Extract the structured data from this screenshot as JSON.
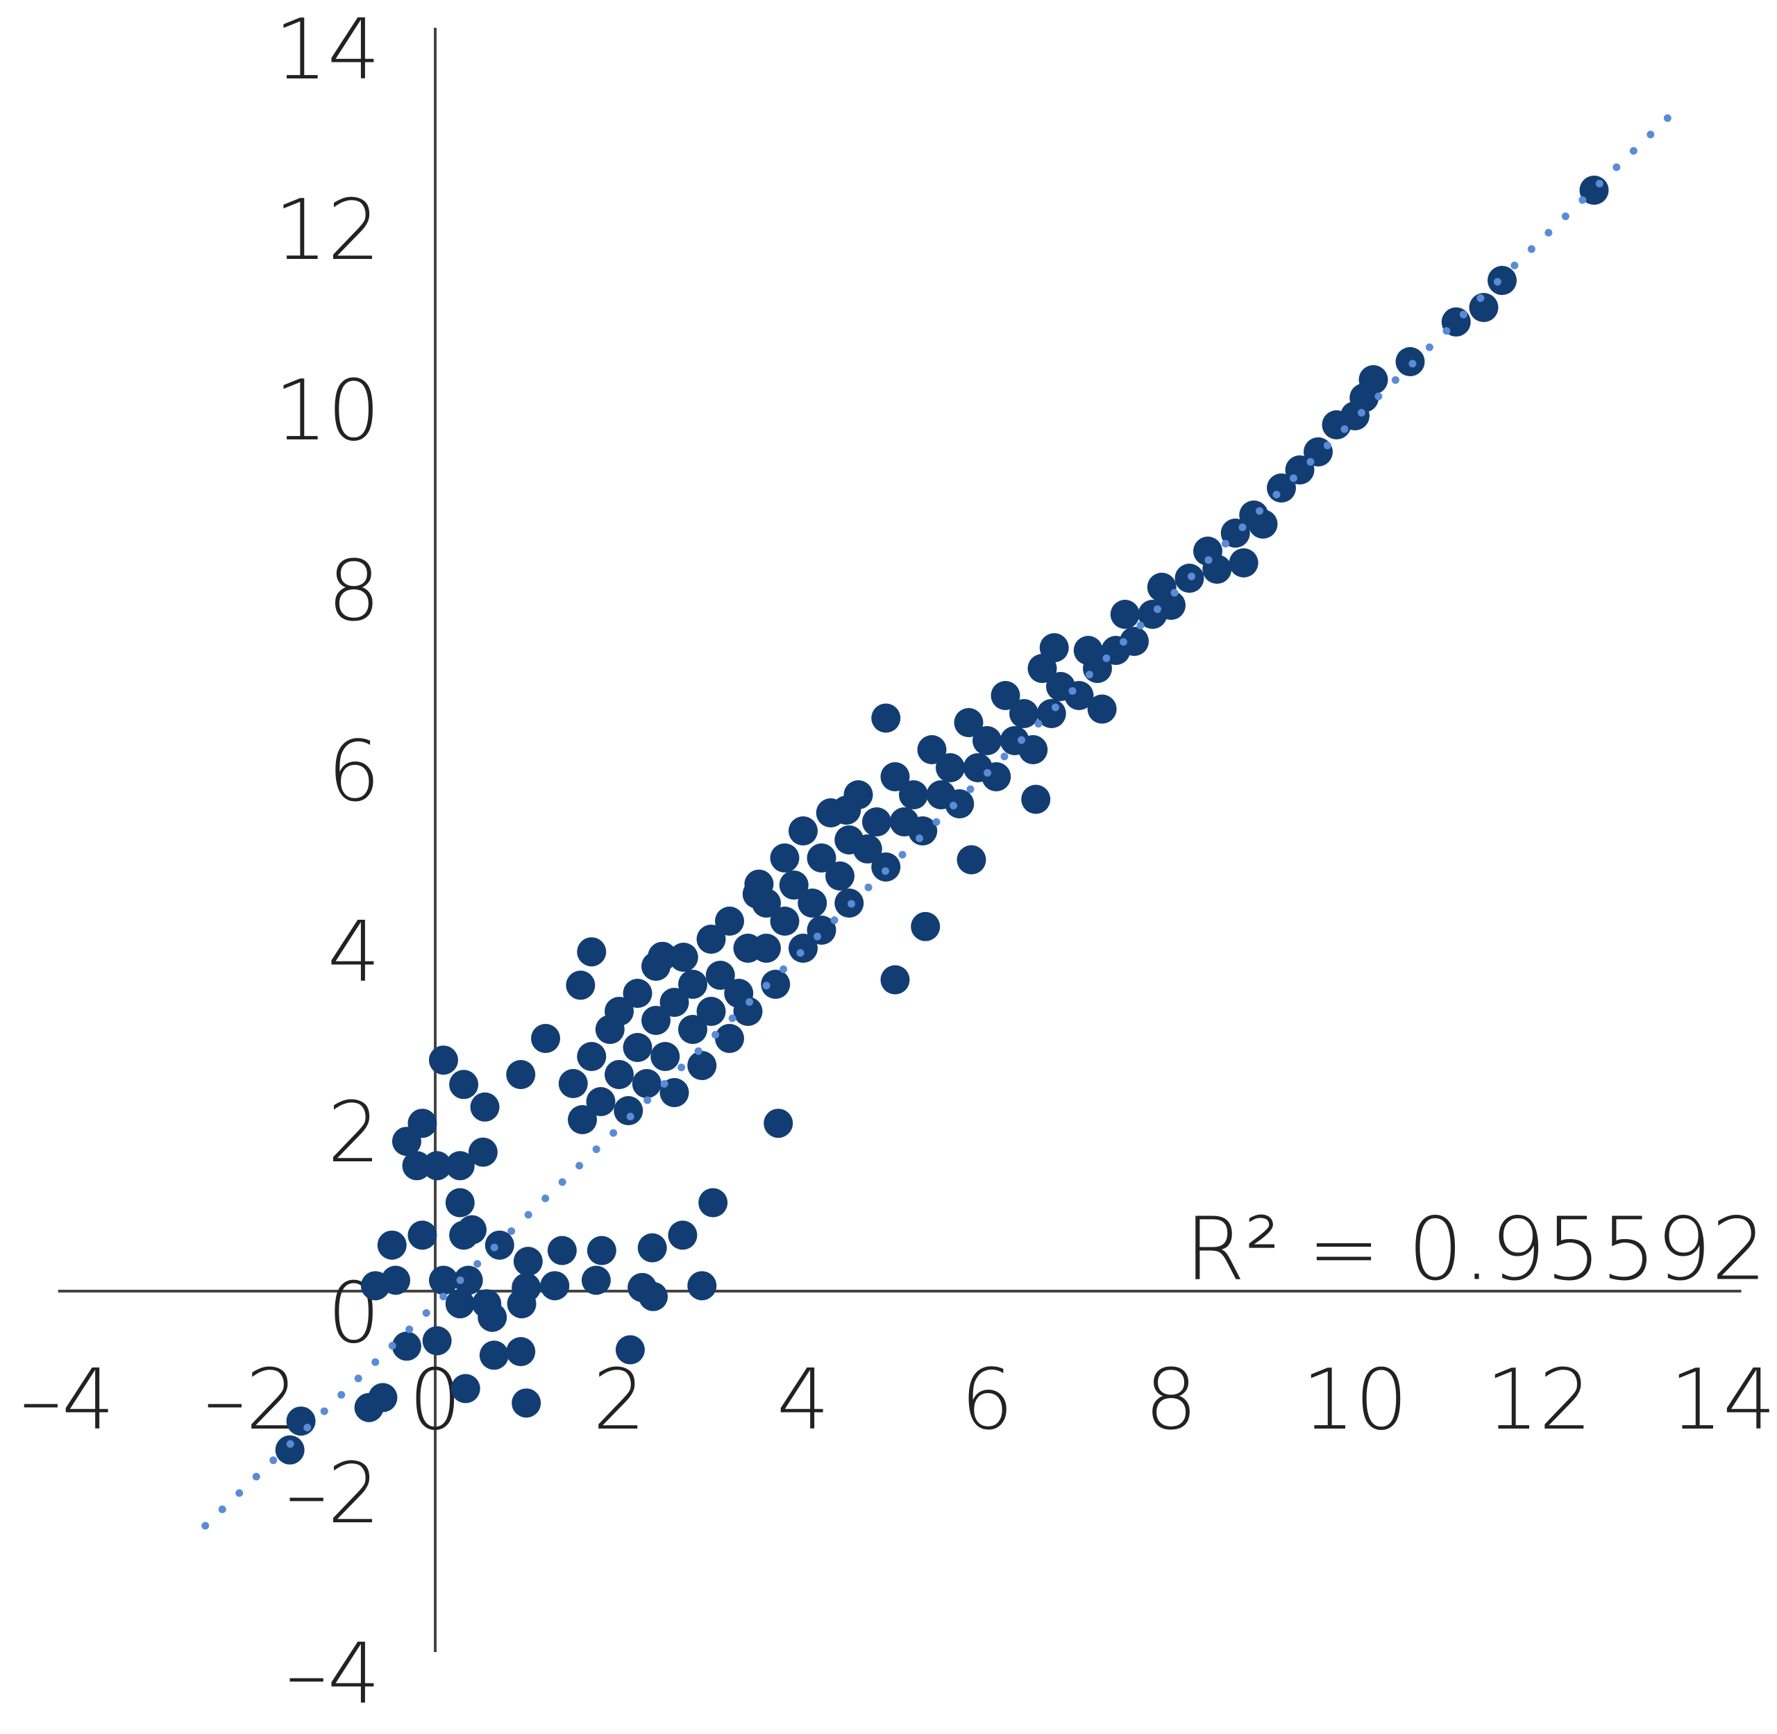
{
  "chart_data": {
    "type": "scatter",
    "xlim": [
      -4.1,
      14.2
    ],
    "ylim": [
      -4,
      14
    ],
    "xticks": [
      {
        "value": -4,
        "label": "–4"
      },
      {
        "value": -2,
        "label": "–2"
      },
      0,
      2,
      4,
      6,
      8,
      10,
      12,
      14
    ],
    "yticks": [
      {
        "value": -4,
        "label": "–4"
      },
      {
        "value": -2,
        "label": "–2"
      },
      0,
      2,
      4,
      6,
      8,
      10,
      12,
      14
    ],
    "color": "#123d73",
    "x": [
      0.09,
      0.31,
      -0.14,
      -0.31,
      0.54,
      -0.2,
      0.02,
      0.27,
      0.52,
      0.27,
      -0.14,
      -0.47,
      -0.65,
      -0.43,
      0.09,
      0.36,
      0.27,
      0.56,
      0.62,
      0.02,
      -0.31,
      0.64,
      0.93,
      0.33,
      0.99,
      -0.57,
      -0.72,
      -1.46,
      -1.58,
      2.12,
      0.99,
      0.94,
      1.3,
      1.75,
      2.25,
      2.37,
      2.9,
      1.81,
      2.36,
      2.69,
      3.02,
      0.7,
      1.01,
      1.38,
      3.73,
      0.31,
      0.4,
      0.93,
      1.2,
      1.58,
      1.7,
      2.47,
      3.52,
      4.47,
      4.9,
      6.73,
      5.0,
      5.33,
      5.83,
      6.53,
      7.25,
      8.79,
      10.2,
      10.6,
      11.1,
      11.4,
      11.6,
      12.6,
      1.5,
      1.6,
      1.7,
      1.8,
      1.9,
      2.0,
      2.0,
      2.1,
      2.2,
      2.2,
      2.3,
      2.4,
      2.4,
      2.5,
      2.6,
      2.6,
      2.7,
      2.8,
      2.8,
      2.9,
      3.0,
      3.0,
      3.1,
      3.2,
      3.2,
      3.3,
      3.4,
      3.4,
      3.5,
      3.6,
      3.6,
      3.7,
      3.8,
      3.8,
      3.9,
      4.0,
      4.0,
      4.1,
      4.2,
      4.2,
      4.3,
      4.4,
      4.5,
      4.5,
      4.6,
      4.7,
      4.8,
      4.9,
      5.0,
      5.1,
      5.2,
      5.3,
      5.4,
      5.5,
      5.6,
      5.7,
      5.8,
      5.9,
      6.0,
      6.1,
      6.2,
      6.3,
      6.4,
      6.5,
      6.6,
      6.7,
      6.8,
      7.0,
      7.1,
      7.2,
      7.4,
      7.5,
      7.6,
      7.8,
      7.9,
      8.0,
      8.2,
      8.4,
      8.5,
      8.7,
      8.9,
      9.0,
      9.2,
      9.4,
      9.6,
      9.8,
      10.0,
      10.1
    ],
    "values": [
      2.56,
      2.29,
      1.86,
      1.66,
      2.04,
      1.39,
      1.39,
      1.39,
      1.54,
      0.98,
      0.62,
      0.51,
      0.06,
      0.12,
      0.12,
      0.12,
      -0.14,
      -0.14,
      -0.29,
      -0.55,
      -0.61,
      -0.71,
      -0.67,
      -1.08,
      -1.24,
      -1.18,
      -1.29,
      -1.44,
      -1.76,
      -0.65,
      0.04,
      -0.14,
      0.06,
      0.12,
      0.04,
      -0.06,
      0.06,
      0.45,
      0.48,
      0.62,
      0.98,
      0.51,
      0.33,
      0.45,
      1.86,
      0.62,
      0.68,
      2.4,
      2.8,
      3.39,
      3.76,
      3.71,
      4.51,
      5.33,
      6.35,
      7.13,
      3.45,
      4.04,
      4.78,
      5.45,
      6.45,
      8.07,
      10.1,
      10.3,
      10.74,
      10.9,
      11.2,
      12.2,
      2.3,
      1.9,
      2.6,
      2.1,
      2.9,
      2.4,
      3.1,
      2.0,
      2.7,
      3.3,
      2.3,
      3.0,
      3.6,
      2.6,
      3.2,
      2.2,
      3.7,
      2.9,
      3.4,
      2.5,
      3.9,
      3.1,
      3.5,
      2.8,
      4.1,
      3.3,
      3.8,
      3.1,
      4.4,
      3.8,
      4.3,
      3.4,
      4.8,
      4.1,
      4.5,
      3.8,
      5.1,
      4.3,
      4.8,
      4.0,
      5.3,
      4.6,
      5.0,
      4.3,
      5.5,
      4.9,
      5.2,
      4.7,
      5.7,
      5.2,
      5.5,
      5.1,
      6.0,
      5.5,
      5.8,
      5.4,
      6.3,
      5.8,
      6.1,
      5.7,
      6.6,
      6.1,
      6.4,
      6.0,
      6.9,
      6.4,
      6.7,
      6.6,
      7.1,
      6.9,
      7.1,
      7.5,
      7.2,
      7.5,
      7.8,
      7.6,
      7.9,
      8.2,
      8.0,
      8.4,
      8.6,
      8.5,
      8.9,
      9.1,
      9.3,
      9.6,
      9.7,
      9.9
    ],
    "trendline": {
      "color": "#5b8bd6",
      "x": [
        -2.5,
        13.4
      ],
      "y": [
        -2.6,
        13.0
      ]
    },
    "annotation": "R² = 0.95592"
  }
}
